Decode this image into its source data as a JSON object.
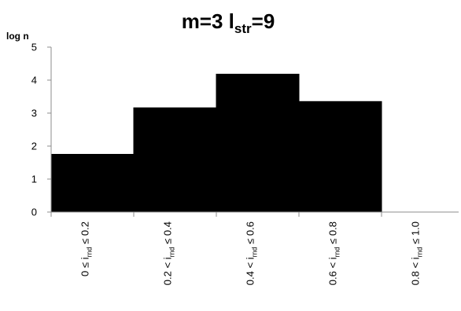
{
  "chart_data": {
    "type": "bar",
    "title": {
      "main_before": "m=3  l",
      "main_sub": "str",
      "main_after": "=9"
    },
    "ylabel": "log n",
    "xlabel": "",
    "ylim": [
      0,
      5
    ],
    "yticks": [
      "0",
      "1",
      "2",
      "3",
      "4",
      "5"
    ],
    "categories": [
      {
        "before": "0 ≤  i",
        "sub": "rnd",
        "after": " ≤ 0.2"
      },
      {
        "before": "0.2 <  i",
        "sub": "rnd",
        "after": " ≤ 0.4"
      },
      {
        "before": "0.4 <  i",
        "sub": "rnd",
        "after": " ≤ 0.6"
      },
      {
        "before": "0.6 <  i",
        "sub": "rnd",
        "after": " ≤ 0.8"
      },
      {
        "before": "0.8 <  i",
        "sub": "rnd",
        "after": " ≤ 1.0"
      }
    ],
    "values": [
      1.75,
      3.16,
      4.18,
      3.35,
      0
    ],
    "bar_color": "#000000",
    "axis_color": "#8c8c8c",
    "grid": false,
    "legend": "none"
  }
}
